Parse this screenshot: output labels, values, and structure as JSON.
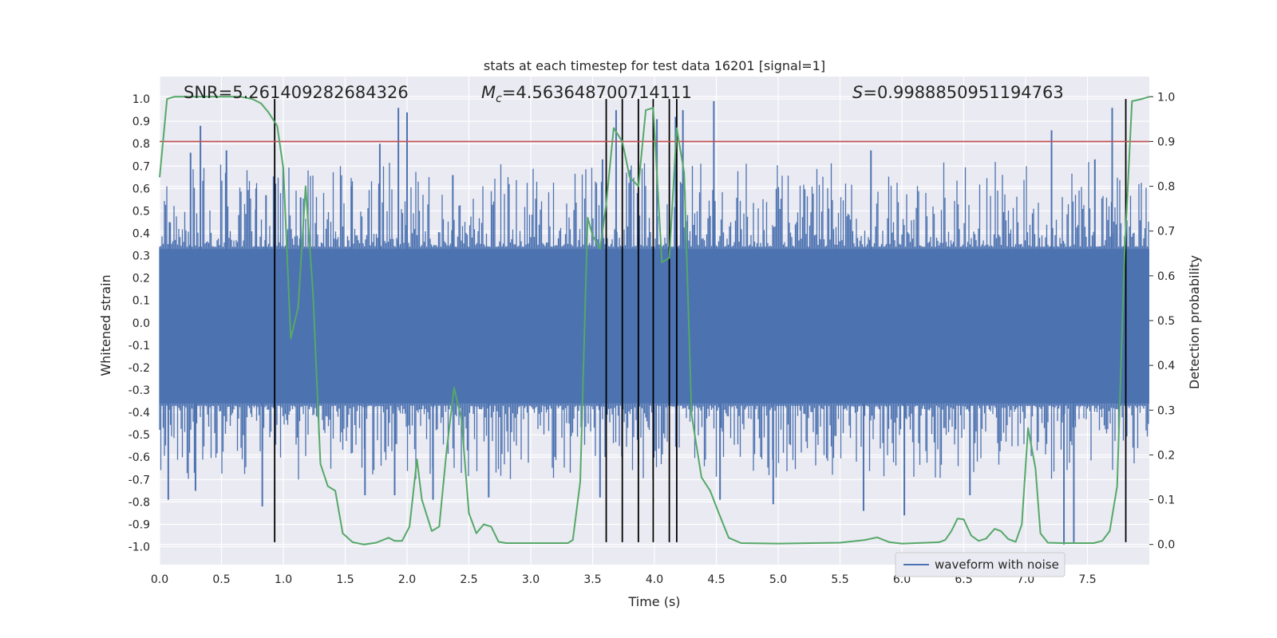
{
  "chart_data": {
    "type": "line",
    "title": "stats at each timestep for test data 16201 [signal=1]",
    "xlabel": "Time (s)",
    "ylabel": "Whitened strain",
    "ylabel_right": "Detection probability",
    "xlim": [
      0.0,
      8.0
    ],
    "ylim": [
      -1.08,
      1.1
    ],
    "ylim_right": [
      -0.045,
      1.045
    ],
    "x_ticks": [
      "0.0",
      "0.5",
      "1.0",
      "1.5",
      "2.0",
      "2.5",
      "3.0",
      "3.5",
      "4.0",
      "4.5",
      "5.0",
      "5.5",
      "6.0",
      "6.5",
      "7.0",
      "7.5"
    ],
    "y_ticks": [
      "1.0",
      "0.9",
      "0.8",
      "0.7",
      "0.6",
      "0.5",
      "0.4",
      "0.3",
      "0.2",
      "0.1",
      "0.0",
      "-0.1",
      "-0.2",
      "-0.3",
      "-0.4",
      "-0.5",
      "-0.6",
      "-0.7",
      "-0.8",
      "-0.9",
      "-1.0"
    ],
    "y_right_ticks": [
      "1.0",
      "0.9",
      "0.8",
      "0.7",
      "0.6",
      "0.5",
      "0.4",
      "0.3",
      "0.2",
      "0.1",
      "0.0"
    ],
    "annotations": {
      "snr": "SNR=5.261409282684326",
      "mc_symbol": "M",
      "mc_sub": "c",
      "mc_value": "=4.563648700714111",
      "s_symbol": "S",
      "s_value": "=0.9988850951194763"
    },
    "legend": {
      "label": "waveform with noise",
      "position": "lower-right"
    },
    "threshold_line": {
      "axis": "right",
      "value": 0.9,
      "color": "#c44e52"
    },
    "detection_markers_x": [
      0.93,
      3.61,
      3.74,
      3.87,
      3.99,
      4.12,
      4.18,
      7.81
    ],
    "marker_range_left": [
      -0.98,
      1.0
    ],
    "waveform": {
      "name": "waveform with noise",
      "color": "#4c72b0",
      "spikes_up": [
        [
          0.08,
          0.45
        ],
        [
          0.25,
          0.76
        ],
        [
          0.33,
          0.88
        ],
        [
          0.54,
          0.77
        ],
        [
          0.78,
          0.6
        ],
        [
          0.86,
          0.57
        ],
        [
          1.14,
          0.56
        ],
        [
          1.55,
          0.61
        ],
        [
          1.78,
          0.8
        ],
        [
          1.93,
          0.96
        ],
        [
          2.0,
          0.94
        ],
        [
          2.37,
          0.66
        ],
        [
          3.58,
          0.73
        ],
        [
          3.69,
          0.95
        ],
        [
          4.02,
          0.91
        ],
        [
          4.17,
          0.92
        ],
        [
          4.23,
          0.95
        ],
        [
          4.48,
          0.99
        ],
        [
          5.75,
          0.77
        ],
        [
          7.21,
          0.86
        ],
        [
          7.56,
          0.73
        ],
        [
          7.7,
          0.96
        ]
      ],
      "spikes_down": [
        [
          0.07,
          -0.79
        ],
        [
          0.29,
          -0.75
        ],
        [
          0.83,
          -0.82
        ],
        [
          1.66,
          -0.77
        ],
        [
          1.9,
          -0.77
        ],
        [
          2.21,
          -0.79
        ],
        [
          2.66,
          -0.78
        ],
        [
          3.56,
          -0.78
        ],
        [
          4.53,
          -0.79
        ],
        [
          4.96,
          -0.81
        ],
        [
          5.69,
          -0.84
        ],
        [
          6.02,
          -0.86
        ],
        [
          6.55,
          -0.77
        ],
        [
          7.31,
          -0.99
        ],
        [
          7.39,
          -0.98
        ]
      ]
    },
    "detection_probability": {
      "name": "detection probability",
      "color": "#55a868",
      "x": [
        0.0,
        0.06,
        0.12,
        0.3,
        0.5,
        0.65,
        0.75,
        0.82,
        0.88,
        0.95,
        1.0,
        1.06,
        1.12,
        1.18,
        1.24,
        1.3,
        1.36,
        1.42,
        1.48,
        1.56,
        1.65,
        1.75,
        1.85,
        1.9,
        1.96,
        2.02,
        2.08,
        2.12,
        2.2,
        2.26,
        2.32,
        2.38,
        2.44,
        2.5,
        2.56,
        2.62,
        2.68,
        2.74,
        2.8,
        3.0,
        3.3,
        3.34,
        3.4,
        3.46,
        3.5,
        3.56,
        3.61,
        3.67,
        3.74,
        3.8,
        3.87,
        3.93,
        3.99,
        4.06,
        4.12,
        4.18,
        4.24,
        4.3,
        4.38,
        4.45,
        4.52,
        4.6,
        4.7,
        5.0,
        5.5,
        5.7,
        5.8,
        5.9,
        6.0,
        6.2,
        6.3,
        6.35,
        6.4,
        6.45,
        6.5,
        6.56,
        6.62,
        6.68,
        6.75,
        6.8,
        6.86,
        6.92,
        6.97,
        7.02,
        7.08,
        7.12,
        7.18,
        7.3,
        7.55,
        7.62,
        7.68,
        7.74,
        7.8,
        7.86,
        7.94,
        8.0
      ],
      "y": [
        0.82,
        0.995,
        1.0,
        1.0,
        1.0,
        1.0,
        0.995,
        0.985,
        0.965,
        0.935,
        0.84,
        0.46,
        0.53,
        0.8,
        0.56,
        0.18,
        0.13,
        0.12,
        0.025,
        0.005,
        0.0,
        0.004,
        0.015,
        0.008,
        0.008,
        0.04,
        0.19,
        0.1,
        0.03,
        0.04,
        0.21,
        0.35,
        0.28,
        0.07,
        0.025,
        0.045,
        0.04,
        0.006,
        0.003,
        0.003,
        0.003,
        0.01,
        0.14,
        0.73,
        0.69,
        0.66,
        0.76,
        0.93,
        0.9,
        0.82,
        0.8,
        0.97,
        0.975,
        0.63,
        0.64,
        0.93,
        0.83,
        0.29,
        0.15,
        0.12,
        0.07,
        0.015,
        0.003,
        0.002,
        0.004,
        0.01,
        0.016,
        0.005,
        0.002,
        0.004,
        0.005,
        0.01,
        0.03,
        0.058,
        0.056,
        0.02,
        0.008,
        0.013,
        0.035,
        0.03,
        0.012,
        0.006,
        0.045,
        0.26,
        0.17,
        0.025,
        0.004,
        0.003,
        0.003,
        0.008,
        0.03,
        0.13,
        0.65,
        0.99,
        0.995,
        1.0
      ]
    }
  }
}
